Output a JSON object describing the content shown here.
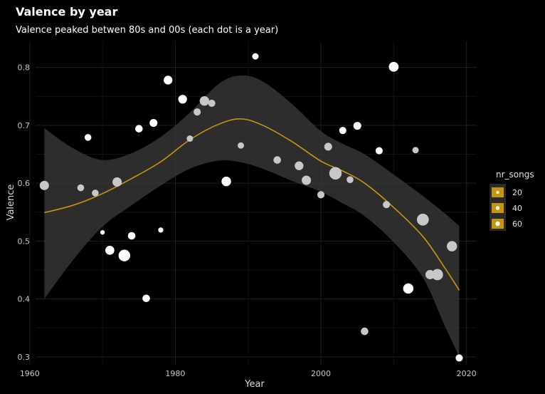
{
  "chart_data": {
    "type": "scatter",
    "title": "Valence by year",
    "subtitle": "Valence peaked betwen 80s and 00s (each dot is a year)",
    "xlabel": "Year",
    "ylabel": "Valence",
    "xlim": [
      1960.8,
      2021.4
    ],
    "ylim": [
      0.285,
      0.845
    ],
    "x_ticks": [
      1960,
      1980,
      2000,
      2020
    ],
    "y_ticks": [
      0.3,
      0.4,
      0.5,
      0.6,
      0.7,
      0.8
    ],
    "grid": true,
    "legend_placement": "right",
    "colors": {
      "background": "#000000",
      "grid_major": "#1f1f1f",
      "grid_minor": "#121212",
      "band": "#3a3a3a",
      "smooth_line": "#c8960c",
      "point_light": "#ffffff",
      "point_dim": "#c8c8c8"
    },
    "points": [
      {
        "x": 1962,
        "y": 0.596,
        "size": 28,
        "shade": "dim"
      },
      {
        "x": 1967,
        "y": 0.592,
        "size": 12,
        "shade": "dim"
      },
      {
        "x": 1968,
        "y": 0.679,
        "size": 12,
        "shade": "light"
      },
      {
        "x": 1969,
        "y": 0.583,
        "size": 12,
        "shade": "dim"
      },
      {
        "x": 1970,
        "y": 0.515,
        "size": 3,
        "shade": "light"
      },
      {
        "x": 1971,
        "y": 0.484,
        "size": 26,
        "shade": "light"
      },
      {
        "x": 1972,
        "y": 0.602,
        "size": 28,
        "shade": "dim"
      },
      {
        "x": 1973,
        "y": 0.475,
        "size": 50,
        "shade": "light"
      },
      {
        "x": 1974,
        "y": 0.509,
        "size": 16,
        "shade": "light"
      },
      {
        "x": 1975,
        "y": 0.694,
        "size": 16,
        "shade": "light"
      },
      {
        "x": 1976,
        "y": 0.401,
        "size": 16,
        "shade": "light"
      },
      {
        "x": 1977,
        "y": 0.704,
        "size": 18,
        "shade": "light"
      },
      {
        "x": 1978,
        "y": 0.519,
        "size": 5,
        "shade": "light"
      },
      {
        "x": 1979,
        "y": 0.778,
        "size": 24,
        "shade": "light"
      },
      {
        "x": 1981,
        "y": 0.745,
        "size": 24,
        "shade": "light"
      },
      {
        "x": 1982,
        "y": 0.677,
        "size": 10,
        "shade": "dim"
      },
      {
        "x": 1983,
        "y": 0.723,
        "size": 14,
        "shade": "dim"
      },
      {
        "x": 1984,
        "y": 0.742,
        "size": 30,
        "shade": "dim"
      },
      {
        "x": 1985,
        "y": 0.738,
        "size": 14,
        "shade": "dim"
      },
      {
        "x": 1987,
        "y": 0.603,
        "size": 30,
        "shade": "light"
      },
      {
        "x": 1989,
        "y": 0.665,
        "size": 10,
        "shade": "dim"
      },
      {
        "x": 1991,
        "y": 0.819,
        "size": 10,
        "shade": "light"
      },
      {
        "x": 1994,
        "y": 0.64,
        "size": 16,
        "shade": "dim"
      },
      {
        "x": 1997,
        "y": 0.63,
        "size": 24,
        "shade": "dim"
      },
      {
        "x": 1998,
        "y": 0.605,
        "size": 28,
        "shade": "dim"
      },
      {
        "x": 2000,
        "y": 0.58,
        "size": 14,
        "shade": "dim"
      },
      {
        "x": 2001,
        "y": 0.663,
        "size": 18,
        "shade": "dim"
      },
      {
        "x": 2002,
        "y": 0.617,
        "size": 58,
        "shade": "dim"
      },
      {
        "x": 2003,
        "y": 0.691,
        "size": 14,
        "shade": "light"
      },
      {
        "x": 2004,
        "y": 0.606,
        "size": 12,
        "shade": "dim"
      },
      {
        "x": 2005,
        "y": 0.699,
        "size": 18,
        "shade": "light"
      },
      {
        "x": 2006,
        "y": 0.344,
        "size": 16,
        "shade": "dim"
      },
      {
        "x": 2008,
        "y": 0.656,
        "size": 14,
        "shade": "light"
      },
      {
        "x": 2009,
        "y": 0.563,
        "size": 14,
        "shade": "dim"
      },
      {
        "x": 2010,
        "y": 0.801,
        "size": 32,
        "shade": "light"
      },
      {
        "x": 2012,
        "y": 0.418,
        "size": 36,
        "shade": "light"
      },
      {
        "x": 2013,
        "y": 0.657,
        "size": 10,
        "shade": "dim"
      },
      {
        "x": 2014,
        "y": 0.537,
        "size": 52,
        "shade": "dim"
      },
      {
        "x": 2015,
        "y": 0.442,
        "size": 28,
        "shade": "dim"
      },
      {
        "x": 2016,
        "y": 0.442,
        "size": 46,
        "shade": "dim"
      },
      {
        "x": 2018,
        "y": 0.491,
        "size": 36,
        "shade": "dim"
      },
      {
        "x": 2019,
        "y": 0.298,
        "size": 14,
        "shade": "light"
      }
    ],
    "smooth": {
      "x": [
        1962,
        1966,
        1970,
        1974,
        1978,
        1982,
        1986,
        1989,
        1992,
        1996,
        2000,
        2003,
        2006,
        2010,
        2014,
        2017,
        2019
      ],
      "y": [
        0.549,
        0.562,
        0.582,
        0.608,
        0.637,
        0.675,
        0.702,
        0.711,
        0.7,
        0.672,
        0.638,
        0.621,
        0.6,
        0.558,
        0.508,
        0.454,
        0.415
      ],
      "lower": [
        0.4,
        0.468,
        0.525,
        0.562,
        0.596,
        0.625,
        0.639,
        0.636,
        0.625,
        0.604,
        0.585,
        0.565,
        0.543,
        0.498,
        0.437,
        0.354,
        0.3
      ],
      "upper": [
        0.695,
        0.66,
        0.64,
        0.652,
        0.68,
        0.722,
        0.772,
        0.786,
        0.776,
        0.737,
        0.69,
        0.668,
        0.65,
        0.615,
        0.578,
        0.548,
        0.526
      ]
    },
    "legend": {
      "title": "nr_songs",
      "entries": [
        {
          "label": "20",
          "size": 20
        },
        {
          "label": "40",
          "size": 40
        },
        {
          "label": "60",
          "size": 60
        }
      ]
    }
  }
}
